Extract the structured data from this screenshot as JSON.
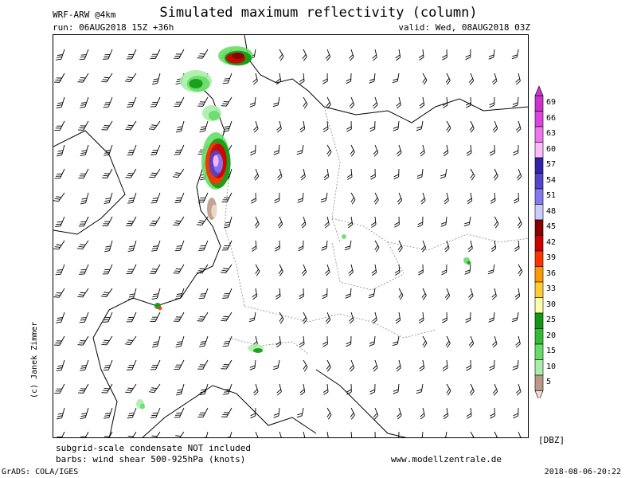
{
  "header": {
    "model": "WRF-ARW @4km",
    "title": "Simulated maximum reflectivity (column)",
    "run": "run: 06AUG2018 15Z +36h",
    "valid": "valid: Wed, 08AUG2018 03Z"
  },
  "map": {
    "region": "Central Europe",
    "background_color": "#ffffff",
    "border_color": "#000000",
    "wind_barb_color": "#000000",
    "echo_regions": [
      {
        "area": "North Sea / Denmark coast",
        "level_dbz": 45
      },
      {
        "area": "Netherlands / Belgium coast",
        "level_dbz": 57
      },
      {
        "area": "Alps",
        "level_dbz": 25
      },
      {
        "area": "Czech / Poland border",
        "level_dbz": 25
      },
      {
        "area": "Mediterranean coast",
        "level_dbz": 20
      }
    ]
  },
  "legend": {
    "unit": "[DBZ]",
    "levels": [
      {
        "value": "69",
        "color": "#cc33cc"
      },
      {
        "value": "66",
        "color": "#dd44dd"
      },
      {
        "value": "63",
        "color": "#ee77ee"
      },
      {
        "value": "60",
        "color": "#ffbbff"
      },
      {
        "value": "57",
        "color": "#3322aa"
      },
      {
        "value": "54",
        "color": "#5544cc"
      },
      {
        "value": "51",
        "color": "#8877ee"
      },
      {
        "value": "48",
        "color": "#ccccff"
      },
      {
        "value": "45",
        "color": "#880000"
      },
      {
        "value": "42",
        "color": "#cc0000"
      },
      {
        "value": "39",
        "color": "#ff3300"
      },
      {
        "value": "36",
        "color": "#ff9900"
      },
      {
        "value": "33",
        "color": "#ffcc33"
      },
      {
        "value": "30",
        "color": "#ffffaa"
      },
      {
        "value": "25",
        "color": "#119911"
      },
      {
        "value": "20",
        "color": "#33bb33"
      },
      {
        "value": "15",
        "color": "#66dd66"
      },
      {
        "value": "10",
        "color": "#aaeeaa"
      },
      {
        "value": "5",
        "color": "#bb9988"
      }
    ],
    "bottom_color": "#eeddcc"
  },
  "footer": {
    "note1": "subgrid-scale condensate NOT included",
    "note2": "barbs: wind shear 500-925hPa (knots)",
    "site": "www.modellzentrale.de",
    "grads": "GrADS: COLA/IGES",
    "timestamp": "2018-08-06-20:22",
    "copyright": "(c) Janek Zimmer"
  }
}
